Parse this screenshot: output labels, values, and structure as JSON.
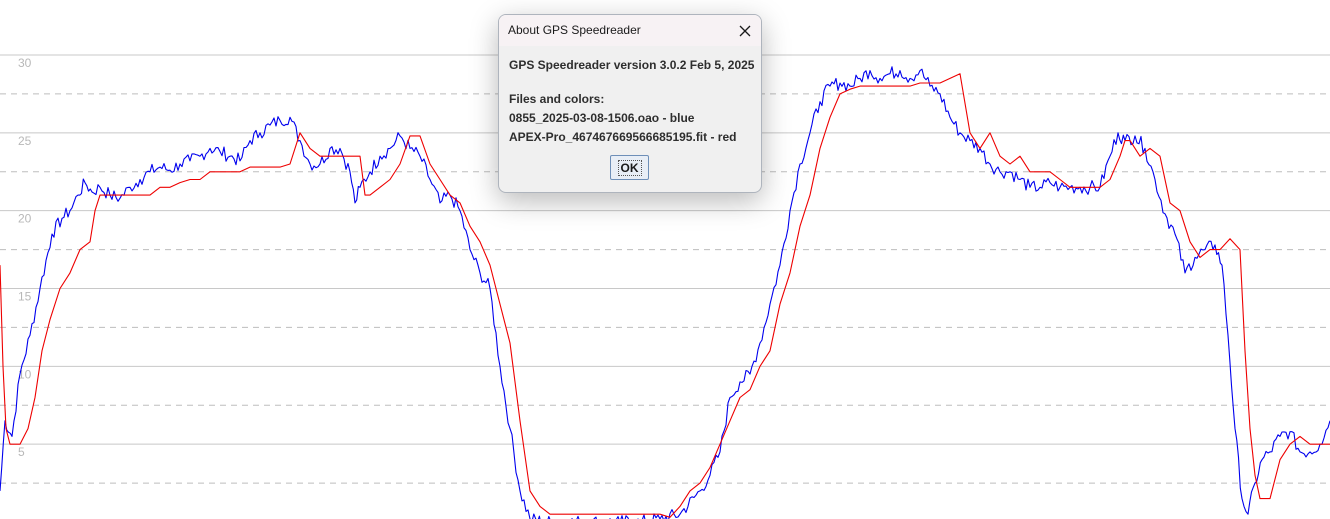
{
  "chart_data": {
    "type": "line",
    "ylim": [
      0,
      30
    ],
    "y_ticks": [
      "30",
      "25",
      "20",
      "15",
      "10",
      "5"
    ],
    "grid": true,
    "series": [
      {
        "color": "#0000ee",
        "points": [
          [
            0,
            2
          ],
          [
            5,
            6.5
          ],
          [
            12,
            5.5
          ],
          [
            20,
            9.5
          ],
          [
            30,
            12
          ],
          [
            40,
            15
          ],
          [
            52,
            18.5
          ],
          [
            62,
            19.5
          ],
          [
            70,
            20
          ],
          [
            78,
            21
          ],
          [
            85,
            21.8
          ],
          [
            92,
            21.2
          ],
          [
            100,
            21.5
          ],
          [
            110,
            21
          ],
          [
            120,
            20.8
          ],
          [
            130,
            21.5
          ],
          [
            140,
            22
          ],
          [
            150,
            22.5
          ],
          [
            160,
            22.8
          ],
          [
            170,
            22.6
          ],
          [
            180,
            23
          ],
          [
            190,
            23.2
          ],
          [
            200,
            23.5
          ],
          [
            210,
            24
          ],
          [
            220,
            23.8
          ],
          [
            230,
            23.5
          ],
          [
            240,
            23.2
          ],
          [
            250,
            24.5
          ],
          [
            260,
            25
          ],
          [
            270,
            25.5
          ],
          [
            280,
            25.8
          ],
          [
            290,
            26
          ],
          [
            300,
            24.5
          ],
          [
            310,
            23
          ],
          [
            320,
            23
          ],
          [
            330,
            24
          ],
          [
            340,
            24
          ],
          [
            350,
            22.5
          ],
          [
            355,
            20.5
          ],
          [
            360,
            21.5
          ],
          [
            370,
            22.5
          ],
          [
            380,
            23.5
          ],
          [
            390,
            24
          ],
          [
            400,
            24.8
          ],
          [
            410,
            24
          ],
          [
            420,
            23.5
          ],
          [
            430,
            22
          ],
          [
            440,
            20.5
          ],
          [
            450,
            21
          ],
          [
            460,
            20
          ],
          [
            470,
            17.5
          ],
          [
            480,
            16
          ],
          [
            490,
            15
          ],
          [
            500,
            10
          ],
          [
            510,
            6
          ],
          [
            520,
            2
          ],
          [
            530,
            0.2
          ],
          [
            545,
            0
          ],
          [
            560,
            0
          ],
          [
            580,
            0
          ],
          [
            600,
            0
          ],
          [
            620,
            0
          ],
          [
            640,
            0
          ],
          [
            660,
            0.2
          ],
          [
            680,
            0.5
          ],
          [
            700,
            2
          ],
          [
            710,
            3
          ],
          [
            720,
            4.5
          ],
          [
            730,
            8
          ],
          [
            740,
            9
          ],
          [
            750,
            9.5
          ],
          [
            760,
            11.5
          ],
          [
            770,
            14
          ],
          [
            780,
            16.5
          ],
          [
            790,
            20
          ],
          [
            800,
            23
          ],
          [
            810,
            25
          ],
          [
            820,
            27
          ],
          [
            830,
            28
          ],
          [
            840,
            28.2
          ],
          [
            850,
            28
          ],
          [
            860,
            28.5
          ],
          [
            870,
            29
          ],
          [
            880,
            28.5
          ],
          [
            890,
            28.8
          ],
          [
            900,
            29
          ],
          [
            910,
            28.5
          ],
          [
            920,
            29
          ],
          [
            930,
            28
          ],
          [
            940,
            27.5
          ],
          [
            950,
            26
          ],
          [
            960,
            25
          ],
          [
            970,
            24.5
          ],
          [
            980,
            24
          ],
          [
            990,
            23
          ],
          [
            1000,
            22.5
          ],
          [
            1010,
            22.5
          ],
          [
            1020,
            22
          ],
          [
            1030,
            21.5
          ],
          [
            1040,
            21.5
          ],
          [
            1050,
            21.8
          ],
          [
            1060,
            21.5
          ],
          [
            1070,
            21.5
          ],
          [
            1080,
            21.5
          ],
          [
            1090,
            21.5
          ],
          [
            1100,
            21.5
          ],
          [
            1110,
            23.5
          ],
          [
            1118,
            25
          ],
          [
            1125,
            24.5
          ],
          [
            1135,
            24.8
          ],
          [
            1145,
            24
          ],
          [
            1155,
            22
          ],
          [
            1165,
            19.8
          ],
          [
            1175,
            18.5
          ],
          [
            1185,
            16
          ],
          [
            1195,
            17
          ],
          [
            1205,
            17.5
          ],
          [
            1215,
            17.8
          ],
          [
            1222,
            16.5
          ],
          [
            1228,
            12
          ],
          [
            1235,
            6
          ],
          [
            1242,
            1.5
          ],
          [
            1248,
            0.5
          ],
          [
            1255,
            2.5
          ],
          [
            1262,
            4
          ],
          [
            1270,
            4.5
          ],
          [
            1280,
            5.5
          ],
          [
            1290,
            5.8
          ],
          [
            1300,
            4.5
          ],
          [
            1310,
            4.5
          ],
          [
            1320,
            5
          ],
          [
            1330,
            6.5
          ]
        ]
      },
      {
        "color": "#ee0000",
        "points": [
          [
            0,
            16.5
          ],
          [
            3,
            10
          ],
          [
            6,
            6
          ],
          [
            10,
            5
          ],
          [
            20,
            5
          ],
          [
            28,
            6
          ],
          [
            35,
            8
          ],
          [
            42,
            11
          ],
          [
            50,
            13
          ],
          [
            60,
            15
          ],
          [
            70,
            16
          ],
          [
            80,
            17.5
          ],
          [
            90,
            18
          ],
          [
            95,
            20
          ],
          [
            100,
            21
          ],
          [
            110,
            21
          ],
          [
            120,
            21
          ],
          [
            130,
            21
          ],
          [
            140,
            21
          ],
          [
            150,
            21
          ],
          [
            160,
            21.5
          ],
          [
            170,
            21.5
          ],
          [
            180,
            21.8
          ],
          [
            190,
            22
          ],
          [
            200,
            22
          ],
          [
            210,
            22.5
          ],
          [
            220,
            22.5
          ],
          [
            230,
            22.5
          ],
          [
            240,
            22.5
          ],
          [
            250,
            22.8
          ],
          [
            260,
            22.8
          ],
          [
            270,
            22.8
          ],
          [
            280,
            22.8
          ],
          [
            290,
            23
          ],
          [
            300,
            25
          ],
          [
            310,
            24
          ],
          [
            320,
            23.5
          ],
          [
            330,
            23.5
          ],
          [
            340,
            23.5
          ],
          [
            350,
            23.5
          ],
          [
            360,
            23.5
          ],
          [
            365,
            21
          ],
          [
            370,
            21
          ],
          [
            380,
            21.5
          ],
          [
            390,
            22
          ],
          [
            400,
            23
          ],
          [
            410,
            24.8
          ],
          [
            420,
            24.8
          ],
          [
            430,
            23
          ],
          [
            440,
            22
          ],
          [
            450,
            21
          ],
          [
            460,
            20.5
          ],
          [
            470,
            19
          ],
          [
            480,
            18
          ],
          [
            490,
            16.5
          ],
          [
            500,
            14
          ],
          [
            510,
            11.5
          ],
          [
            520,
            6.5
          ],
          [
            530,
            2
          ],
          [
            540,
            1
          ],
          [
            550,
            0.5
          ],
          [
            560,
            0.5
          ],
          [
            580,
            0.5
          ],
          [
            600,
            0.5
          ],
          [
            620,
            0.5
          ],
          [
            640,
            0.5
          ],
          [
            660,
            0.5
          ],
          [
            670,
            0.3
          ],
          [
            680,
            1
          ],
          [
            690,
            2
          ],
          [
            700,
            2.5
          ],
          [
            710,
            3.5
          ],
          [
            720,
            5
          ],
          [
            730,
            6.5
          ],
          [
            740,
            8
          ],
          [
            750,
            8.5
          ],
          [
            760,
            10
          ],
          [
            770,
            11
          ],
          [
            780,
            14
          ],
          [
            790,
            16
          ],
          [
            800,
            19
          ],
          [
            810,
            21
          ],
          [
            820,
            24
          ],
          [
            830,
            26
          ],
          [
            840,
            27.5
          ],
          [
            850,
            27.8
          ],
          [
            860,
            28
          ],
          [
            870,
            28
          ],
          [
            880,
            28
          ],
          [
            890,
            28
          ],
          [
            900,
            28
          ],
          [
            910,
            28
          ],
          [
            920,
            28.2
          ],
          [
            930,
            28.2
          ],
          [
            940,
            28.2
          ],
          [
            950,
            28.5
          ],
          [
            960,
            28.8
          ],
          [
            970,
            25
          ],
          [
            980,
            24
          ],
          [
            990,
            25
          ],
          [
            1000,
            23.5
          ],
          [
            1010,
            23
          ],
          [
            1020,
            23.5
          ],
          [
            1030,
            22.5
          ],
          [
            1040,
            22.5
          ],
          [
            1050,
            22.5
          ],
          [
            1060,
            22
          ],
          [
            1070,
            21.5
          ],
          [
            1080,
            21.5
          ],
          [
            1090,
            21.5
          ],
          [
            1100,
            21.5
          ],
          [
            1110,
            22
          ],
          [
            1120,
            23.5
          ],
          [
            1125,
            24.5
          ],
          [
            1130,
            24.5
          ],
          [
            1140,
            23.5
          ],
          [
            1150,
            24
          ],
          [
            1160,
            23.5
          ],
          [
            1170,
            20.5
          ],
          [
            1180,
            20
          ],
          [
            1190,
            18
          ],
          [
            1200,
            17
          ],
          [
            1210,
            17.5
          ],
          [
            1220,
            17.5
          ],
          [
            1230,
            18.2
          ],
          [
            1240,
            17.5
          ],
          [
            1245,
            11
          ],
          [
            1250,
            6
          ],
          [
            1255,
            3
          ],
          [
            1260,
            1.5
          ],
          [
            1270,
            1.5
          ],
          [
            1280,
            4
          ],
          [
            1290,
            5
          ],
          [
            1300,
            5.5
          ],
          [
            1310,
            5
          ],
          [
            1320,
            5
          ],
          [
            1330,
            5
          ]
        ]
      }
    ]
  },
  "dialog": {
    "title": "About GPS Speedreader",
    "close_icon": "close-icon",
    "version_line": "GPS Speedreader version 3.0.2 Feb 5, 2025",
    "files_heading": "Files and colors:",
    "file_1": "0855_2025-03-08-1506.oao - blue",
    "file_2": "APEX-Pro_467467669566685195.fit - red",
    "ok_label": "OK"
  }
}
